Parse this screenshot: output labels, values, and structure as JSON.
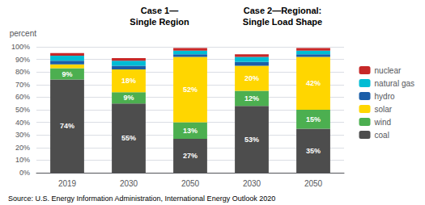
{
  "chart_data": {
    "type": "bar",
    "stacked": true,
    "categories": [
      "2019",
      "2030",
      "2050",
      "2030",
      "2050"
    ],
    "series": [
      {
        "name": "coal",
        "color": "#4d4d4d",
        "values": [
          74,
          55,
          27,
          53,
          35
        ],
        "data_labels": true,
        "value_labels": [
          "74%",
          "55%",
          "27%",
          "53%",
          "35%"
        ]
      },
      {
        "name": "wind",
        "color": "#4caf50",
        "values": [
          9,
          9,
          13,
          12,
          15
        ],
        "data_labels": true,
        "value_labels": [
          "9%",
          "9%",
          "13%",
          "12%",
          "15%"
        ]
      },
      {
        "name": "solar",
        "color": "#ffd600",
        "values": [
          3,
          18,
          52,
          20,
          42
        ],
        "data_labels": true,
        "value_labels": [
          null,
          "18%",
          "52%",
          "20%",
          "42%"
        ]
      },
      {
        "name": "hydro",
        "color": "#1a5ea8",
        "values": [
          3,
          3,
          2,
          3,
          2
        ]
      },
      {
        "name": "natural gas",
        "color": "#00bcd4",
        "values": [
          4,
          4,
          3,
          4,
          3
        ]
      },
      {
        "name": "nuclear",
        "color": "#c62828",
        "values": [
          2,
          2,
          2,
          2,
          2
        ]
      }
    ],
    "y_label": "percent",
    "ylim": [
      0,
      100
    ],
    "yticks": [
      {
        "value": 0,
        "label": "0%"
      },
      {
        "value": 10,
        "label": "10%"
      },
      {
        "value": 20,
        "label": "20%"
      },
      {
        "value": 30,
        "label": "30%"
      },
      {
        "value": 40,
        "label": "40%"
      },
      {
        "value": 50,
        "label": "50%"
      },
      {
        "value": 60,
        "label": "60%"
      },
      {
        "value": 70,
        "label": "70%"
      },
      {
        "value": 80,
        "label": "80%"
      },
      {
        "value": 90,
        "label": "90%"
      },
      {
        "value": 100,
        "label": "100%"
      }
    ],
    "grid": true,
    "legend": "right",
    "annotations": [
      {
        "text": "Case 1—\nSingle Region"
      },
      {
        "text": "Case 2—Regional:\nSingle Load Shape"
      },
      {
        "text": "Source: U.S. Energy Information Administration, International Energy Outlook 2020"
      }
    ]
  }
}
